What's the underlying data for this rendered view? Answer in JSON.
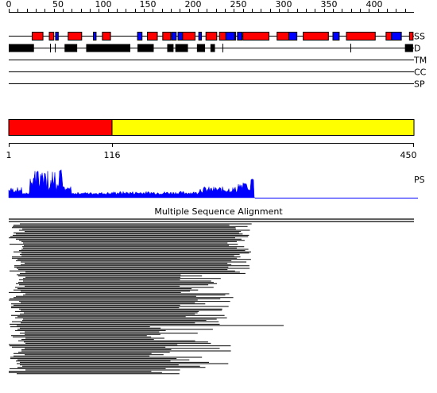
{
  "ruler": {
    "ticks": [
      "0",
      "50",
      "100",
      "150",
      "200",
      "250",
      "300",
      "350",
      "400"
    ]
  },
  "tracks": {
    "ss_label": "SS",
    "d_label": "D",
    "tm_label": "TM",
    "cc_label": "CC",
    "sp_label": "SP"
  },
  "secondary_structure": {
    "helices": [
      [
        26,
        38
      ],
      [
        45,
        50
      ],
      [
        66,
        81
      ],
      [
        104,
        113
      ],
      [
        154,
        165
      ],
      [
        171,
        180
      ],
      [
        193,
        207
      ],
      [
        219,
        231
      ],
      [
        234,
        252
      ],
      [
        260,
        289
      ],
      [
        298,
        311
      ],
      [
        327,
        355
      ],
      [
        375,
        407
      ],
      [
        419,
        428
      ],
      [
        445,
        449
      ]
    ],
    "strands": [
      [
        52,
        55
      ],
      [
        94,
        97
      ],
      [
        143,
        148
      ],
      [
        181,
        186
      ],
      [
        188,
        193
      ],
      [
        211,
        214
      ],
      [
        241,
        251
      ],
      [
        254,
        259
      ],
      [
        311,
        320
      ],
      [
        360,
        367
      ],
      [
        425,
        436
      ]
    ],
    "helix_color": "#ff0000",
    "strand_color": "#0000ff"
  },
  "disorder": {
    "regions": [
      [
        0,
        28
      ],
      [
        62,
        76
      ],
      [
        86,
        135
      ],
      [
        143,
        161
      ],
      [
        176,
        183
      ],
      [
        185,
        199
      ],
      [
        209,
        218
      ],
      [
        224,
        229
      ],
      [
        440,
        449
      ]
    ],
    "ticks": [
      46,
      51,
      237,
      379
    ],
    "color": "#000000"
  },
  "domains": {
    "bar": [
      {
        "start": 1,
        "end": 116,
        "color": "#ff0000"
      },
      {
        "start": 116,
        "end": 450,
        "color": "#ffff00"
      }
    ],
    "labels": [
      "1",
      "116",
      "450"
    ]
  },
  "ps": {
    "label": "PS",
    "color": "#0000ff"
  },
  "alignment": {
    "title": "Multiple Sequence Alignment"
  }
}
